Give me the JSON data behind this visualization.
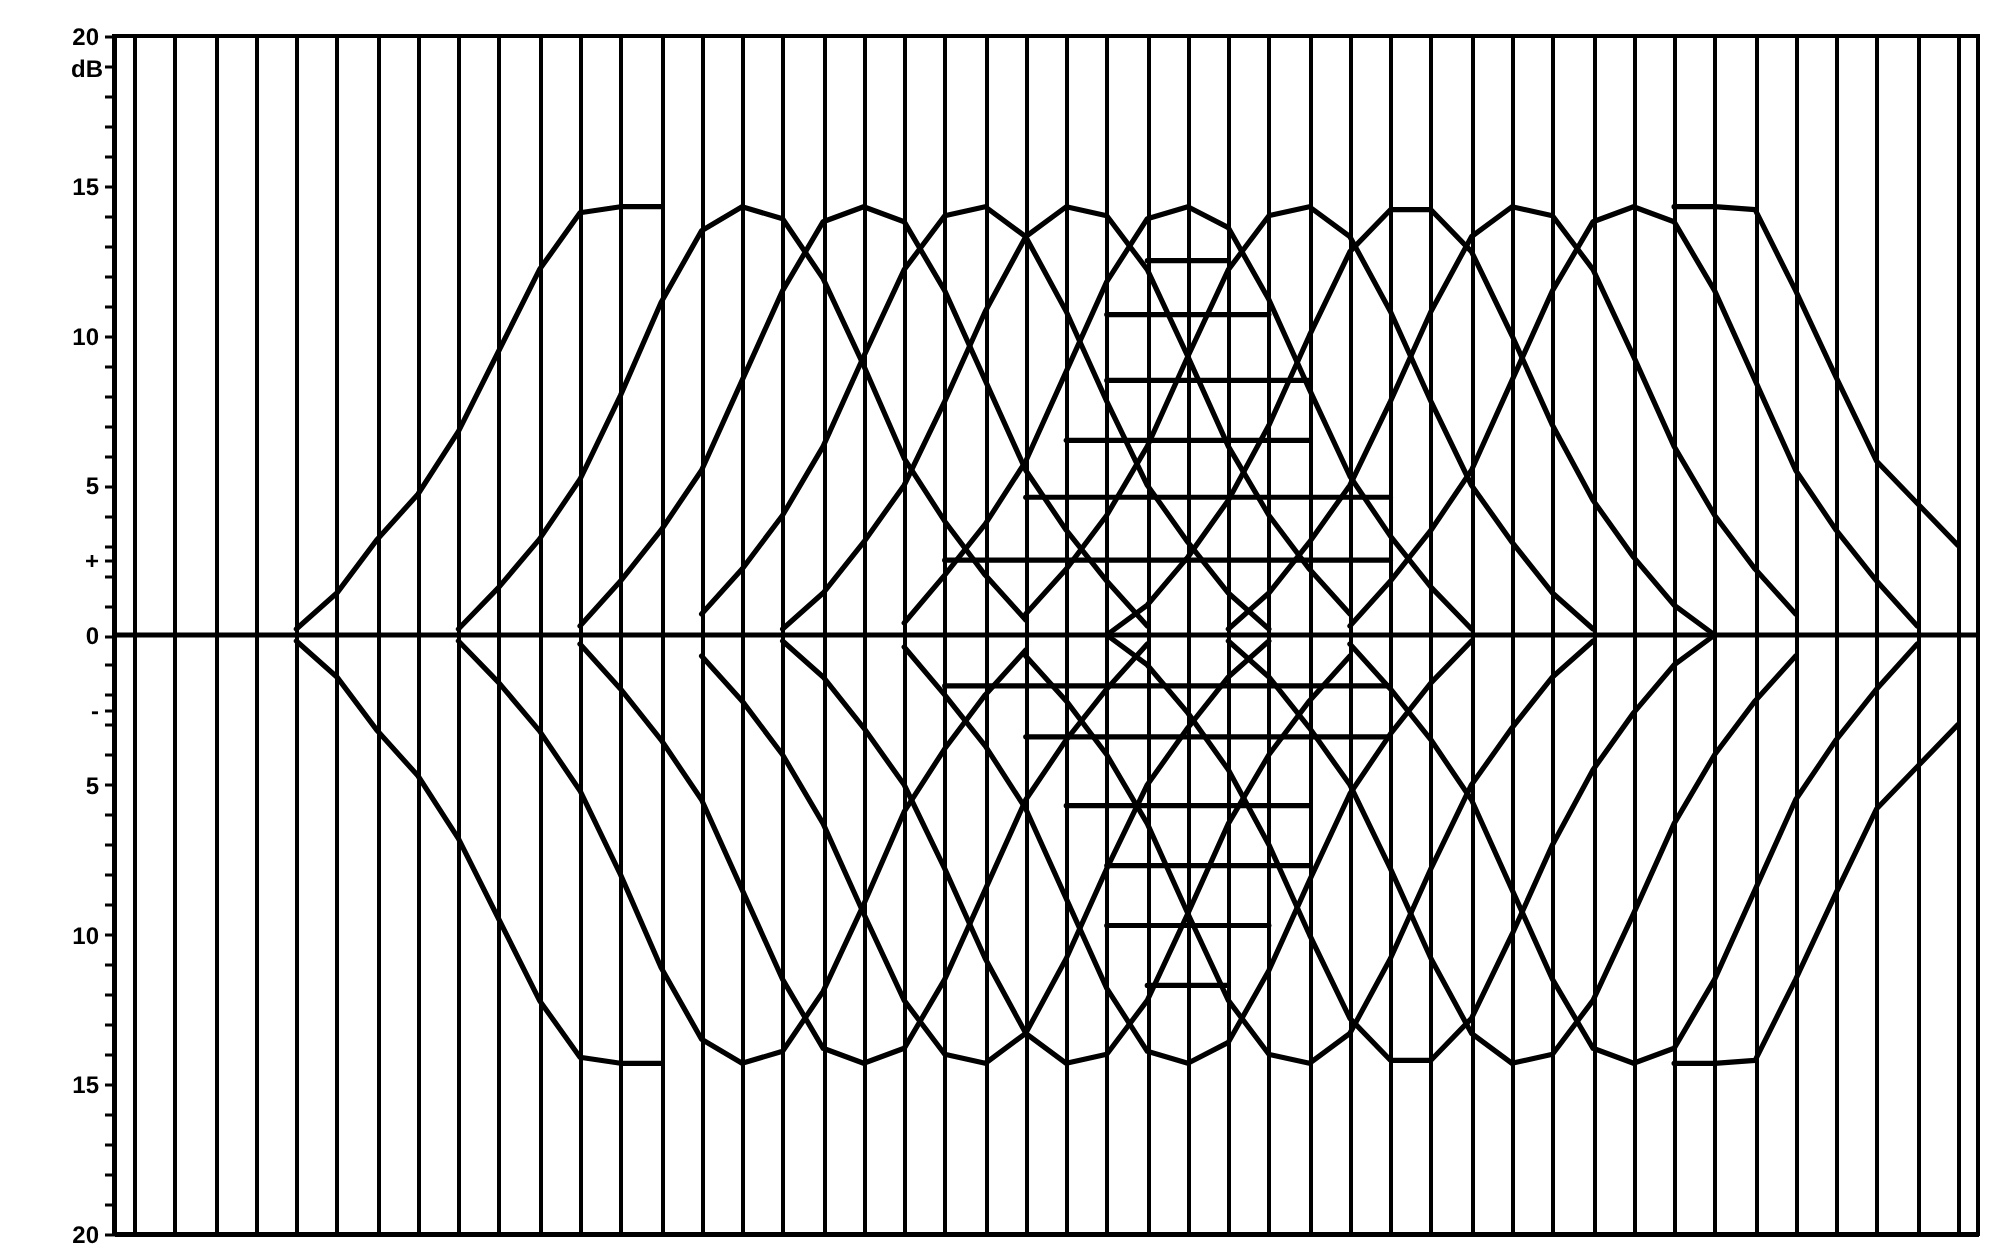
{
  "chart_data": {
    "type": "line",
    "ylabel": "dB",
    "grid": "x",
    "tick_labels": "y",
    "categories": [
      null,
      null,
      null,
      null,
      null,
      null,
      null,
      null,
      null,
      null,
      null,
      null,
      null,
      null,
      null,
      null,
      null,
      null,
      null,
      null,
      null,
      null,
      null,
      null,
      null,
      null,
      null,
      null,
      null,
      null,
      null,
      null,
      null,
      null,
      null,
      null,
      null,
      null,
      null,
      null,
      null,
      null,
      null,
      null,
      null,
      null
    ],
    "ylim": [
      -20,
      20
    ],
    "yticks": [
      {
        "value": -20,
        "label": "20"
      },
      {
        "value": -19,
        "label": null
      },
      {
        "value": -18,
        "label": null
      },
      {
        "value": -17,
        "label": null
      },
      {
        "value": -16,
        "label": null
      },
      {
        "value": -15,
        "label": "15"
      },
      {
        "value": -14,
        "label": null
      },
      {
        "value": -13,
        "label": null
      },
      {
        "value": -12,
        "label": null
      },
      {
        "value": -11,
        "label": null
      },
      {
        "value": -10,
        "label": "10"
      },
      {
        "value": -9,
        "label": null
      },
      {
        "value": -8,
        "label": null
      },
      {
        "value": -7,
        "label": null
      },
      {
        "value": -6,
        "label": null
      },
      {
        "value": -5,
        "label": "5"
      },
      {
        "value": -4,
        "label": null
      },
      {
        "value": -3,
        "label": null
      },
      {
        "value": -2.5,
        "label": "-"
      },
      {
        "value": -2,
        "label": null
      },
      {
        "value": -1,
        "label": null
      },
      0,
      {
        "value": 1,
        "label": null
      },
      {
        "value": 2,
        "label": null
      },
      {
        "value": 2.5,
        "label": "+"
      },
      {
        "value": 3,
        "label": null
      },
      {
        "value": 4,
        "label": null
      },
      5,
      {
        "value": 6,
        "label": null
      },
      {
        "value": 7,
        "label": null
      },
      {
        "value": 8,
        "label": null
      },
      {
        "value": 9,
        "label": null
      },
      10,
      {
        "value": 11,
        "label": null
      },
      {
        "value": 12,
        "label": null
      },
      {
        "value": 13,
        "label": null
      },
      {
        "value": 14,
        "label": null
      },
      15,
      {
        "value": 16,
        "label": null
      },
      {
        "value": 17,
        "label": null
      },
      {
        "value": 18,
        "label": null
      },
      {
        "value": 19,
        "label": null
      },
      20
    ],
    "ref_lines": [
      {
        "axis": "y",
        "value": 0
      }
    ],
    "series": [
      {
        "color": "#000000",
        "values": [
          null,
          null,
          null,
          null,
          0.2,
          1.4,
          3.2,
          4.7,
          6.8,
          9.5,
          12.2,
          14.1,
          14.3,
          14.3,
          null,
          null,
          null,
          null,
          null,
          null,
          null,
          null,
          null,
          null,
          null,
          null,
          null,
          null,
          null,
          null,
          null,
          null,
          null,
          null,
          null,
          null,
          null,
          null,
          null,
          null,
          null,
          null,
          null,
          null,
          null,
          null
        ]
      },
      {
        "color": "#000000",
        "values": [
          null,
          null,
          null,
          null,
          null,
          null,
          null,
          null,
          0.2,
          1.6,
          3.2,
          5.2,
          8.0,
          11.1,
          13.5,
          14.3,
          13.9,
          11.9,
          9.0,
          5.9,
          3.8,
          2.0,
          0.5,
          null,
          null,
          null,
          null,
          null,
          null,
          null,
          null,
          null,
          null,
          null,
          null,
          null,
          null,
          null,
          null,
          null,
          null,
          null,
          null,
          null,
          null,
          null
        ]
      },
      {
        "color": "#000000",
        "values": [
          null,
          null,
          null,
          null,
          null,
          null,
          null,
          null,
          null,
          null,
          null,
          0.3,
          1.8,
          3.5,
          5.5,
          8.5,
          11.5,
          13.8,
          14.3,
          13.8,
          11.5,
          8.5,
          5.5,
          3.5,
          1.8,
          0.3,
          null,
          null,
          null,
          null,
          null,
          null,
          null,
          null,
          null,
          null,
          null,
          null,
          null,
          null,
          null,
          null,
          null,
          null,
          null,
          null
        ]
      },
      {
        "color": "#000000",
        "values": [
          null,
          null,
          null,
          null,
          null,
          null,
          null,
          null,
          null,
          null,
          null,
          null,
          null,
          null,
          0.7,
          2.2,
          4.0,
          6.3,
          9.3,
          12.2,
          14.0,
          14.3,
          13.3,
          10.8,
          7.8,
          5.0,
          3.1,
          1.4,
          0.2,
          null,
          null,
          null,
          null,
          null,
          null,
          null,
          null,
          null,
          null,
          null,
          null,
          null,
          null,
          null,
          null,
          null
        ]
      },
      {
        "color": "#000000",
        "values": [
          null,
          null,
          null,
          null,
          null,
          null,
          null,
          null,
          null,
          null,
          null,
          null,
          null,
          null,
          null,
          null,
          0.2,
          1.4,
          3.1,
          5.0,
          7.8,
          10.8,
          13.3,
          14.3,
          14.0,
          12.2,
          9.3,
          6.3,
          4.0,
          2.2,
          0.7,
          null,
          null,
          null,
          null,
          null,
          null,
          null,
          null,
          null,
          null,
          null,
          null,
          null,
          null,
          null
        ]
      },
      {
        "color": "#000000",
        "values": [
          null,
          null,
          null,
          null,
          null,
          null,
          null,
          null,
          null,
          null,
          null,
          null,
          null,
          null,
          null,
          null,
          null,
          null,
          null,
          0.4,
          2.0,
          3.7,
          5.8,
          8.8,
          11.8,
          13.9,
          14.3,
          13.6,
          11.2,
          8.2,
          5.3,
          3.3,
          1.6,
          0.2,
          null,
          null,
          null,
          null,
          null,
          null,
          null,
          null,
          null,
          null,
          null,
          null
        ]
      },
      {
        "color": "#000000",
        "values": [
          null,
          null,
          null,
          null,
          null,
          null,
          null,
          null,
          null,
          null,
          null,
          null,
          null,
          null,
          null,
          null,
          null,
          null,
          null,
          null,
          null,
          null,
          0.7,
          2.2,
          4.0,
          6.3,
          9.3,
          12.2,
          14.0,
          14.3,
          13.3,
          10.8,
          7.8,
          5.0,
          3.1,
          1.4,
          0.2,
          null,
          null,
          null,
          null,
          null,
          null,
          null,
          null,
          null
        ]
      },
      {
        "color": "#000000",
        "values": [
          null,
          null,
          null,
          null,
          null,
          null,
          null,
          null,
          null,
          null,
          null,
          null,
          null,
          null,
          null,
          null,
          null,
          null,
          null,
          null,
          null,
          null,
          null,
          null,
          0,
          1.0,
          2.6,
          4.5,
          7.0,
          10,
          12.8,
          14.2,
          14.2,
          12.8,
          10,
          7.0,
          4.5,
          2.6,
          1.0,
          0,
          null,
          null,
          null,
          null,
          null,
          null
        ]
      },
      {
        "color": "#000000",
        "values": [
          null,
          null,
          null,
          null,
          null,
          null,
          null,
          null,
          null,
          null,
          null,
          null,
          null,
          null,
          null,
          null,
          null,
          null,
          null,
          null,
          null,
          null,
          null,
          null,
          null,
          null,
          null,
          0.2,
          1.4,
          3.1,
          5.0,
          7.8,
          10.8,
          13.3,
          14.3,
          14.0,
          12.2,
          9.3,
          6.3,
          4.0,
          2.2,
          0.7,
          null,
          null,
          null,
          null
        ]
      },
      {
        "color": "#000000",
        "values": [
          null,
          null,
          null,
          null,
          null,
          null,
          null,
          null,
          null,
          null,
          null,
          null,
          null,
          null,
          null,
          null,
          null,
          null,
          null,
          null,
          null,
          null,
          null,
          null,
          null,
          null,
          null,
          null,
          null,
          null,
          0.3,
          1.8,
          3.5,
          5.5,
          8.5,
          11.5,
          13.8,
          14.3,
          13.8,
          11.5,
          8.5,
          5.5,
          3.5,
          1.8,
          0.3,
          null
        ]
      },
      {
        "color": "#000000",
        "values": [
          null,
          null,
          null,
          null,
          null,
          null,
          null,
          null,
          null,
          null,
          null,
          null,
          null,
          null,
          null,
          null,
          null,
          null,
          null,
          null,
          null,
          null,
          null,
          null,
          null,
          null,
          null,
          null,
          null,
          null,
          null,
          null,
          null,
          null,
          null,
          null,
          null,
          null,
          14.3,
          14.3,
          14.2,
          11.5,
          8.6,
          5.8,
          4.4,
          3.0
        ]
      },
      {
        "color": "#000000",
        "values": [
          null,
          null,
          null,
          null,
          -0.2,
          -1.4,
          -3.2,
          -4.7,
          -6.8,
          -9.5,
          -12.2,
          -14.1,
          -14.3,
          -14.3,
          null,
          null,
          null,
          null,
          null,
          null,
          null,
          null,
          null,
          null,
          null,
          null,
          null,
          null,
          null,
          null,
          null,
          null,
          null,
          null,
          null,
          null,
          null,
          null,
          null,
          null,
          null,
          null,
          null,
          null,
          null,
          null
        ]
      },
      {
        "color": "#000000",
        "values": [
          null,
          null,
          null,
          null,
          null,
          null,
          null,
          null,
          -0.2,
          -1.6,
          -3.2,
          -5.2,
          -8.0,
          -11.1,
          -13.5,
          -14.3,
          -13.9,
          -11.9,
          -9.0,
          -5.9,
          -3.8,
          -2.0,
          -0.5,
          null,
          null,
          null,
          null,
          null,
          null,
          null,
          null,
          null,
          null,
          null,
          null,
          null,
          null,
          null,
          null,
          null,
          null,
          null,
          null,
          null,
          null,
          null
        ]
      },
      {
        "color": "#000000",
        "values": [
          null,
          null,
          null,
          null,
          null,
          null,
          null,
          null,
          null,
          null,
          null,
          -0.3,
          -1.8,
          -3.5,
          -5.5,
          -8.5,
          -11.5,
          -13.8,
          -14.3,
          -13.8,
          -11.5,
          -8.5,
          -5.5,
          -3.5,
          -1.8,
          -0.3,
          null,
          null,
          null,
          null,
          null,
          null,
          null,
          null,
          null,
          null,
          null,
          null,
          null,
          null,
          null,
          null,
          null,
          null,
          null,
          null
        ]
      },
      {
        "color": "#000000",
        "values": [
          null,
          null,
          null,
          null,
          null,
          null,
          null,
          null,
          null,
          null,
          null,
          null,
          null,
          null,
          -0.7,
          -2.2,
          -4.0,
          -6.3,
          -9.3,
          -12.2,
          -14.0,
          -14.3,
          -13.3,
          -10.8,
          -7.8,
          -5.0,
          -3.1,
          -1.4,
          -0.2,
          null,
          null,
          null,
          null,
          null,
          null,
          null,
          null,
          null,
          null,
          null,
          null,
          null,
          null,
          null,
          null,
          null
        ]
      },
      {
        "color": "#000000",
        "values": [
          null,
          null,
          null,
          null,
          null,
          null,
          null,
          null,
          null,
          null,
          null,
          null,
          null,
          null,
          null,
          null,
          -0.2,
          -1.4,
          -3.1,
          -5.0,
          -7.8,
          -10.8,
          -13.3,
          -14.3,
          -14.0,
          -12.2,
          -9.3,
          -6.3,
          -4.0,
          -2.2,
          -0.7,
          null,
          null,
          null,
          null,
          null,
          null,
          null,
          null,
          null,
          null,
          null,
          null,
          null,
          null,
          null
        ]
      },
      {
        "color": "#000000",
        "values": [
          null,
          null,
          null,
          null,
          null,
          null,
          null,
          null,
          null,
          null,
          null,
          null,
          null,
          null,
          null,
          null,
          null,
          null,
          null,
          -0.4,
          -2.0,
          -3.7,
          -5.8,
          -8.8,
          -11.8,
          -13.9,
          -14.3,
          -13.6,
          -11.2,
          -8.2,
          -5.3,
          -3.3,
          -1.6,
          -0.2,
          null,
          null,
          null,
          null,
          null,
          null,
          null,
          null,
          null,
          null,
          null,
          null
        ]
      },
      {
        "color": "#000000",
        "values": [
          null,
          null,
          null,
          null,
          null,
          null,
          null,
          null,
          null,
          null,
          null,
          null,
          null,
          null,
          null,
          null,
          null,
          null,
          null,
          null,
          null,
          null,
          -0.7,
          -2.2,
          -4.0,
          -6.3,
          -9.3,
          -12.2,
          -14.0,
          -14.3,
          -13.3,
          -10.8,
          -7.8,
          -5.0,
          -3.1,
          -1.4,
          -0.2,
          null,
          null,
          null,
          null,
          null,
          null,
          null,
          null,
          null
        ]
      },
      {
        "color": "#000000",
        "values": [
          null,
          null,
          null,
          null,
          null,
          null,
          null,
          null,
          null,
          null,
          null,
          null,
          null,
          null,
          null,
          null,
          null,
          null,
          null,
          null,
          null,
          null,
          null,
          null,
          0,
          -1.0,
          -2.6,
          -4.5,
          -7.0,
          -10,
          -12.8,
          -14.2,
          -14.2,
          -12.8,
          -10,
          -7.0,
          -4.5,
          -2.6,
          -1.0,
          0,
          null,
          null,
          null,
          null,
          null,
          null
        ]
      },
      {
        "color": "#000000",
        "values": [
          null,
          null,
          null,
          null,
          null,
          null,
          null,
          null,
          null,
          null,
          null,
          null,
          null,
          null,
          null,
          null,
          null,
          null,
          null,
          null,
          null,
          null,
          null,
          null,
          null,
          null,
          null,
          -0.2,
          -1.4,
          -3.1,
          -5.0,
          -7.8,
          -10.8,
          -13.3,
          -14.3,
          -14.0,
          -12.2,
          -9.3,
          -6.3,
          -4.0,
          -2.2,
          -0.7,
          null,
          null,
          null,
          null
        ]
      },
      {
        "color": "#000000",
        "values": [
          null,
          null,
          null,
          null,
          null,
          null,
          null,
          null,
          null,
          null,
          null,
          null,
          null,
          null,
          null,
          null,
          null,
          null,
          null,
          null,
          null,
          null,
          null,
          null,
          null,
          null,
          null,
          null,
          null,
          null,
          -0.3,
          -1.8,
          -3.5,
          -5.5,
          -8.5,
          -11.5,
          -13.8,
          -14.3,
          -13.8,
          -11.5,
          -8.5,
          -5.5,
          -3.5,
          -1.8,
          -0.3,
          null
        ]
      },
      {
        "color": "#000000",
        "values": [
          null,
          null,
          null,
          null,
          null,
          null,
          null,
          null,
          null,
          null,
          null,
          null,
          null,
          null,
          null,
          null,
          null,
          null,
          null,
          null,
          null,
          null,
          null,
          null,
          null,
          null,
          null,
          null,
          null,
          null,
          null,
          null,
          null,
          null,
          null,
          null,
          null,
          null,
          -14.3,
          -14.3,
          -14.2,
          -11.5,
          -8.6,
          -5.8,
          -4.4,
          -3.0
        ]
      },
      {
        "color": "#000000",
        "values": [
          null,
          null,
          null,
          null,
          null,
          null,
          null,
          null,
          null,
          null,
          null,
          null,
          null,
          null,
          null,
          null,
          null,
          null,
          null,
          null,
          null,
          null,
          null,
          null,
          null,
          12.5,
          12.5,
          12.5,
          null,
          null,
          null,
          null,
          null,
          null,
          null,
          null,
          null,
          null,
          null,
          null,
          null,
          null,
          null,
          null,
          null,
          null
        ]
      },
      {
        "color": "#000000",
        "values": [
          null,
          null,
          null,
          null,
          null,
          null,
          null,
          null,
          null,
          null,
          null,
          null,
          null,
          null,
          null,
          null,
          null,
          null,
          null,
          null,
          null,
          null,
          null,
          null,
          10.7,
          10.7,
          10.7,
          10.7,
          10.7,
          null,
          null,
          null,
          null,
          null,
          null,
          null,
          null,
          null,
          null,
          null,
          null,
          null,
          null,
          null,
          null,
          null
        ]
      },
      {
        "color": "#000000",
        "values": [
          null,
          null,
          null,
          null,
          null,
          null,
          null,
          null,
          null,
          null,
          null,
          null,
          null,
          null,
          null,
          null,
          null,
          null,
          null,
          null,
          null,
          null,
          null,
          null,
          8.5,
          8.5,
          8.5,
          8.5,
          8.5,
          8.5,
          null,
          null,
          null,
          null,
          null,
          null,
          null,
          null,
          null,
          null,
          null,
          null,
          null,
          null,
          null,
          null
        ]
      },
      {
        "color": "#000000",
        "values": [
          null,
          null,
          null,
          null,
          null,
          null,
          null,
          null,
          null,
          null,
          null,
          null,
          null,
          null,
          null,
          null,
          null,
          null,
          null,
          null,
          null,
          null,
          null,
          6.5,
          6.5,
          6.5,
          6.5,
          6.5,
          6.5,
          6.5,
          null,
          null,
          null,
          null,
          null,
          null,
          null,
          null,
          null,
          null,
          null,
          null,
          null,
          null,
          null,
          null
        ]
      },
      {
        "color": "#000000",
        "values": [
          null,
          null,
          null,
          null,
          null,
          null,
          null,
          null,
          null,
          null,
          null,
          null,
          null,
          null,
          null,
          null,
          null,
          null,
          null,
          null,
          null,
          null,
          4.6,
          4.6,
          4.6,
          4.6,
          4.6,
          4.6,
          4.6,
          4.6,
          4.6,
          4.6,
          null,
          null,
          null,
          null,
          null,
          null,
          null,
          null,
          null,
          null,
          null,
          null,
          null,
          null
        ]
      },
      {
        "color": "#000000",
        "values": [
          null,
          null,
          null,
          null,
          null,
          null,
          null,
          null,
          null,
          null,
          null,
          null,
          null,
          null,
          null,
          null,
          null,
          null,
          null,
          null,
          2.5,
          2.5,
          2.5,
          2.5,
          2.5,
          2.5,
          2.5,
          2.5,
          2.5,
          2.5,
          2.5,
          2.5,
          null,
          null,
          null,
          null,
          null,
          null,
          null,
          null,
          null,
          null,
          null,
          null,
          null,
          null
        ]
      },
      {
        "color": "#000000",
        "values": [
          null,
          null,
          null,
          null,
          null,
          null,
          null,
          null,
          null,
          null,
          null,
          null,
          null,
          null,
          null,
          null,
          null,
          null,
          null,
          null,
          -1.7,
          -1.7,
          -1.7,
          -1.7,
          -1.7,
          -1.7,
          -1.7,
          -1.7,
          -1.7,
          -1.7,
          -1.7,
          -1.7,
          null,
          null,
          null,
          null,
          null,
          null,
          null,
          null,
          null,
          null,
          null,
          null,
          null,
          null
        ]
      },
      {
        "color": "#000000",
        "values": [
          null,
          null,
          null,
          null,
          null,
          null,
          null,
          null,
          null,
          null,
          null,
          null,
          null,
          null,
          null,
          null,
          null,
          null,
          null,
          null,
          null,
          null,
          -3.4,
          -3.4,
          -3.4,
          -3.4,
          -3.4,
          -3.4,
          -3.4,
          -3.4,
          -3.4,
          -3.4,
          null,
          null,
          null,
          null,
          null,
          null,
          null,
          null,
          null,
          null,
          null,
          null,
          null,
          null
        ]
      },
      {
        "color": "#000000",
        "values": [
          null,
          null,
          null,
          null,
          null,
          null,
          null,
          null,
          null,
          null,
          null,
          null,
          null,
          null,
          null,
          null,
          null,
          null,
          null,
          null,
          null,
          null,
          null,
          -5.7,
          -5.7,
          -5.7,
          -5.7,
          -5.7,
          -5.7,
          -5.7,
          null,
          null,
          null,
          null,
          null,
          null,
          null,
          null,
          null,
          null,
          null,
          null,
          null,
          null,
          null,
          null
        ]
      },
      {
        "color": "#000000",
        "values": [
          null,
          null,
          null,
          null,
          null,
          null,
          null,
          null,
          null,
          null,
          null,
          null,
          null,
          null,
          null,
          null,
          null,
          null,
          null,
          null,
          null,
          null,
          null,
          null,
          -7.7,
          -7.7,
          -7.7,
          -7.7,
          -7.7,
          -7.7,
          null,
          null,
          null,
          null,
          null,
          null,
          null,
          null,
          null,
          null,
          null,
          null,
          null,
          null,
          null,
          null
        ]
      },
      {
        "color": "#000000",
        "values": [
          null,
          null,
          null,
          null,
          null,
          null,
          null,
          null,
          null,
          null,
          null,
          null,
          null,
          null,
          null,
          null,
          null,
          null,
          null,
          null,
          null,
          null,
          null,
          null,
          -9.7,
          -9.7,
          -9.7,
          -9.7,
          -9.7,
          null,
          null,
          null,
          null,
          null,
          null,
          null,
          null,
          null,
          null,
          null,
          null,
          null,
          null,
          null,
          null,
          null
        ]
      },
      {
        "color": "#000000",
        "values": [
          null,
          null,
          null,
          null,
          null,
          null,
          null,
          null,
          null,
          null,
          null,
          null,
          null,
          null,
          null,
          null,
          null,
          null,
          null,
          null,
          null,
          null,
          null,
          null,
          null,
          -11.7,
          -11.7,
          -11.7,
          null,
          null,
          null,
          null,
          null,
          null,
          null,
          null,
          null,
          null,
          null,
          null,
          null,
          null,
          null,
          null,
          null,
          null
        ]
      }
    ]
  }
}
